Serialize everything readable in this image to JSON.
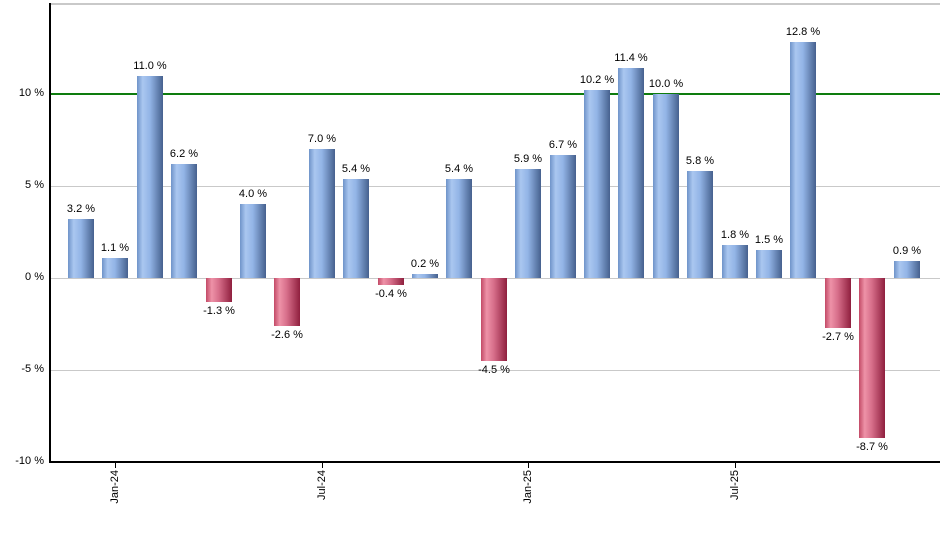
{
  "chart_data": {
    "type": "bar",
    "title": "",
    "xlabel": "",
    "ylabel": "",
    "unit": "%",
    "ylim": [
      -10,
      14.9
    ],
    "grid": true,
    "legend": "none",
    "reference_line": {
      "value": 10,
      "label": ""
    },
    "y_ticks": [
      {
        "value": 10,
        "label": "10 %"
      },
      {
        "value": 5,
        "label": "5 %"
      },
      {
        "value": 0,
        "label": "0 %"
      },
      {
        "value": -5,
        "label": "-5 %"
      },
      {
        "value": -10,
        "label": "-10 %"
      }
    ],
    "x_ticks": [
      {
        "bar_index": 1,
        "label": "Jan-24"
      },
      {
        "bar_index": 7,
        "label": "Jul-24"
      },
      {
        "bar_index": 13,
        "label": "Jan-25"
      },
      {
        "bar_index": 19,
        "label": "Jul-25"
      }
    ],
    "bars": [
      {
        "value": 3.2,
        "label": "3.2 %"
      },
      {
        "value": 1.1,
        "label": "1.1 %"
      },
      {
        "value": 11.0,
        "label": "11.0 %"
      },
      {
        "value": 6.2,
        "label": "6.2 %"
      },
      {
        "value": -1.3,
        "label": "-1.3 %"
      },
      {
        "value": 4.0,
        "label": "4.0 %"
      },
      {
        "value": -2.6,
        "label": "-2.6 %"
      },
      {
        "value": 7.0,
        "label": "7.0 %"
      },
      {
        "value": 5.4,
        "label": "5.4 %"
      },
      {
        "value": -0.4,
        "label": "-0.4 %"
      },
      {
        "value": 0.2,
        "label": "0.2 %"
      },
      {
        "value": 5.4,
        "label": "5.4 %"
      },
      {
        "value": -4.5,
        "label": "-4.5 %"
      },
      {
        "value": 5.9,
        "label": "5.9 %"
      },
      {
        "value": 6.7,
        "label": "6.7 %"
      },
      {
        "value": 10.2,
        "label": "10.2 %"
      },
      {
        "value": 11.4,
        "label": "11.4 %"
      },
      {
        "value": 10.0,
        "label": "10.0 %"
      },
      {
        "value": 5.8,
        "label": "5.8 %"
      },
      {
        "value": 1.8,
        "label": "1.8 %"
      },
      {
        "value": 1.5,
        "label": "1.5 %"
      },
      {
        "value": 12.8,
        "label": "12.8 %"
      },
      {
        "value": -2.7,
        "label": "-2.7 %"
      },
      {
        "value": -8.7,
        "label": "-8.7 %"
      },
      {
        "value": 0.9,
        "label": "0.9 %"
      }
    ],
    "colors": {
      "positive_edge": "#6f93c9",
      "positive_light": "#aac7f0",
      "positive_mid": "#92b4e6",
      "positive_dark": "#46618e",
      "negative_edge": "#c24a66",
      "negative_light": "#ee92a8",
      "negative_mid": "#d66d89",
      "negative_dark": "#8f1f3e",
      "gridline": "#c9c9c9",
      "axis": "#000000",
      "reference_green": "#0e7c0e",
      "label_text": "#000000"
    }
  }
}
